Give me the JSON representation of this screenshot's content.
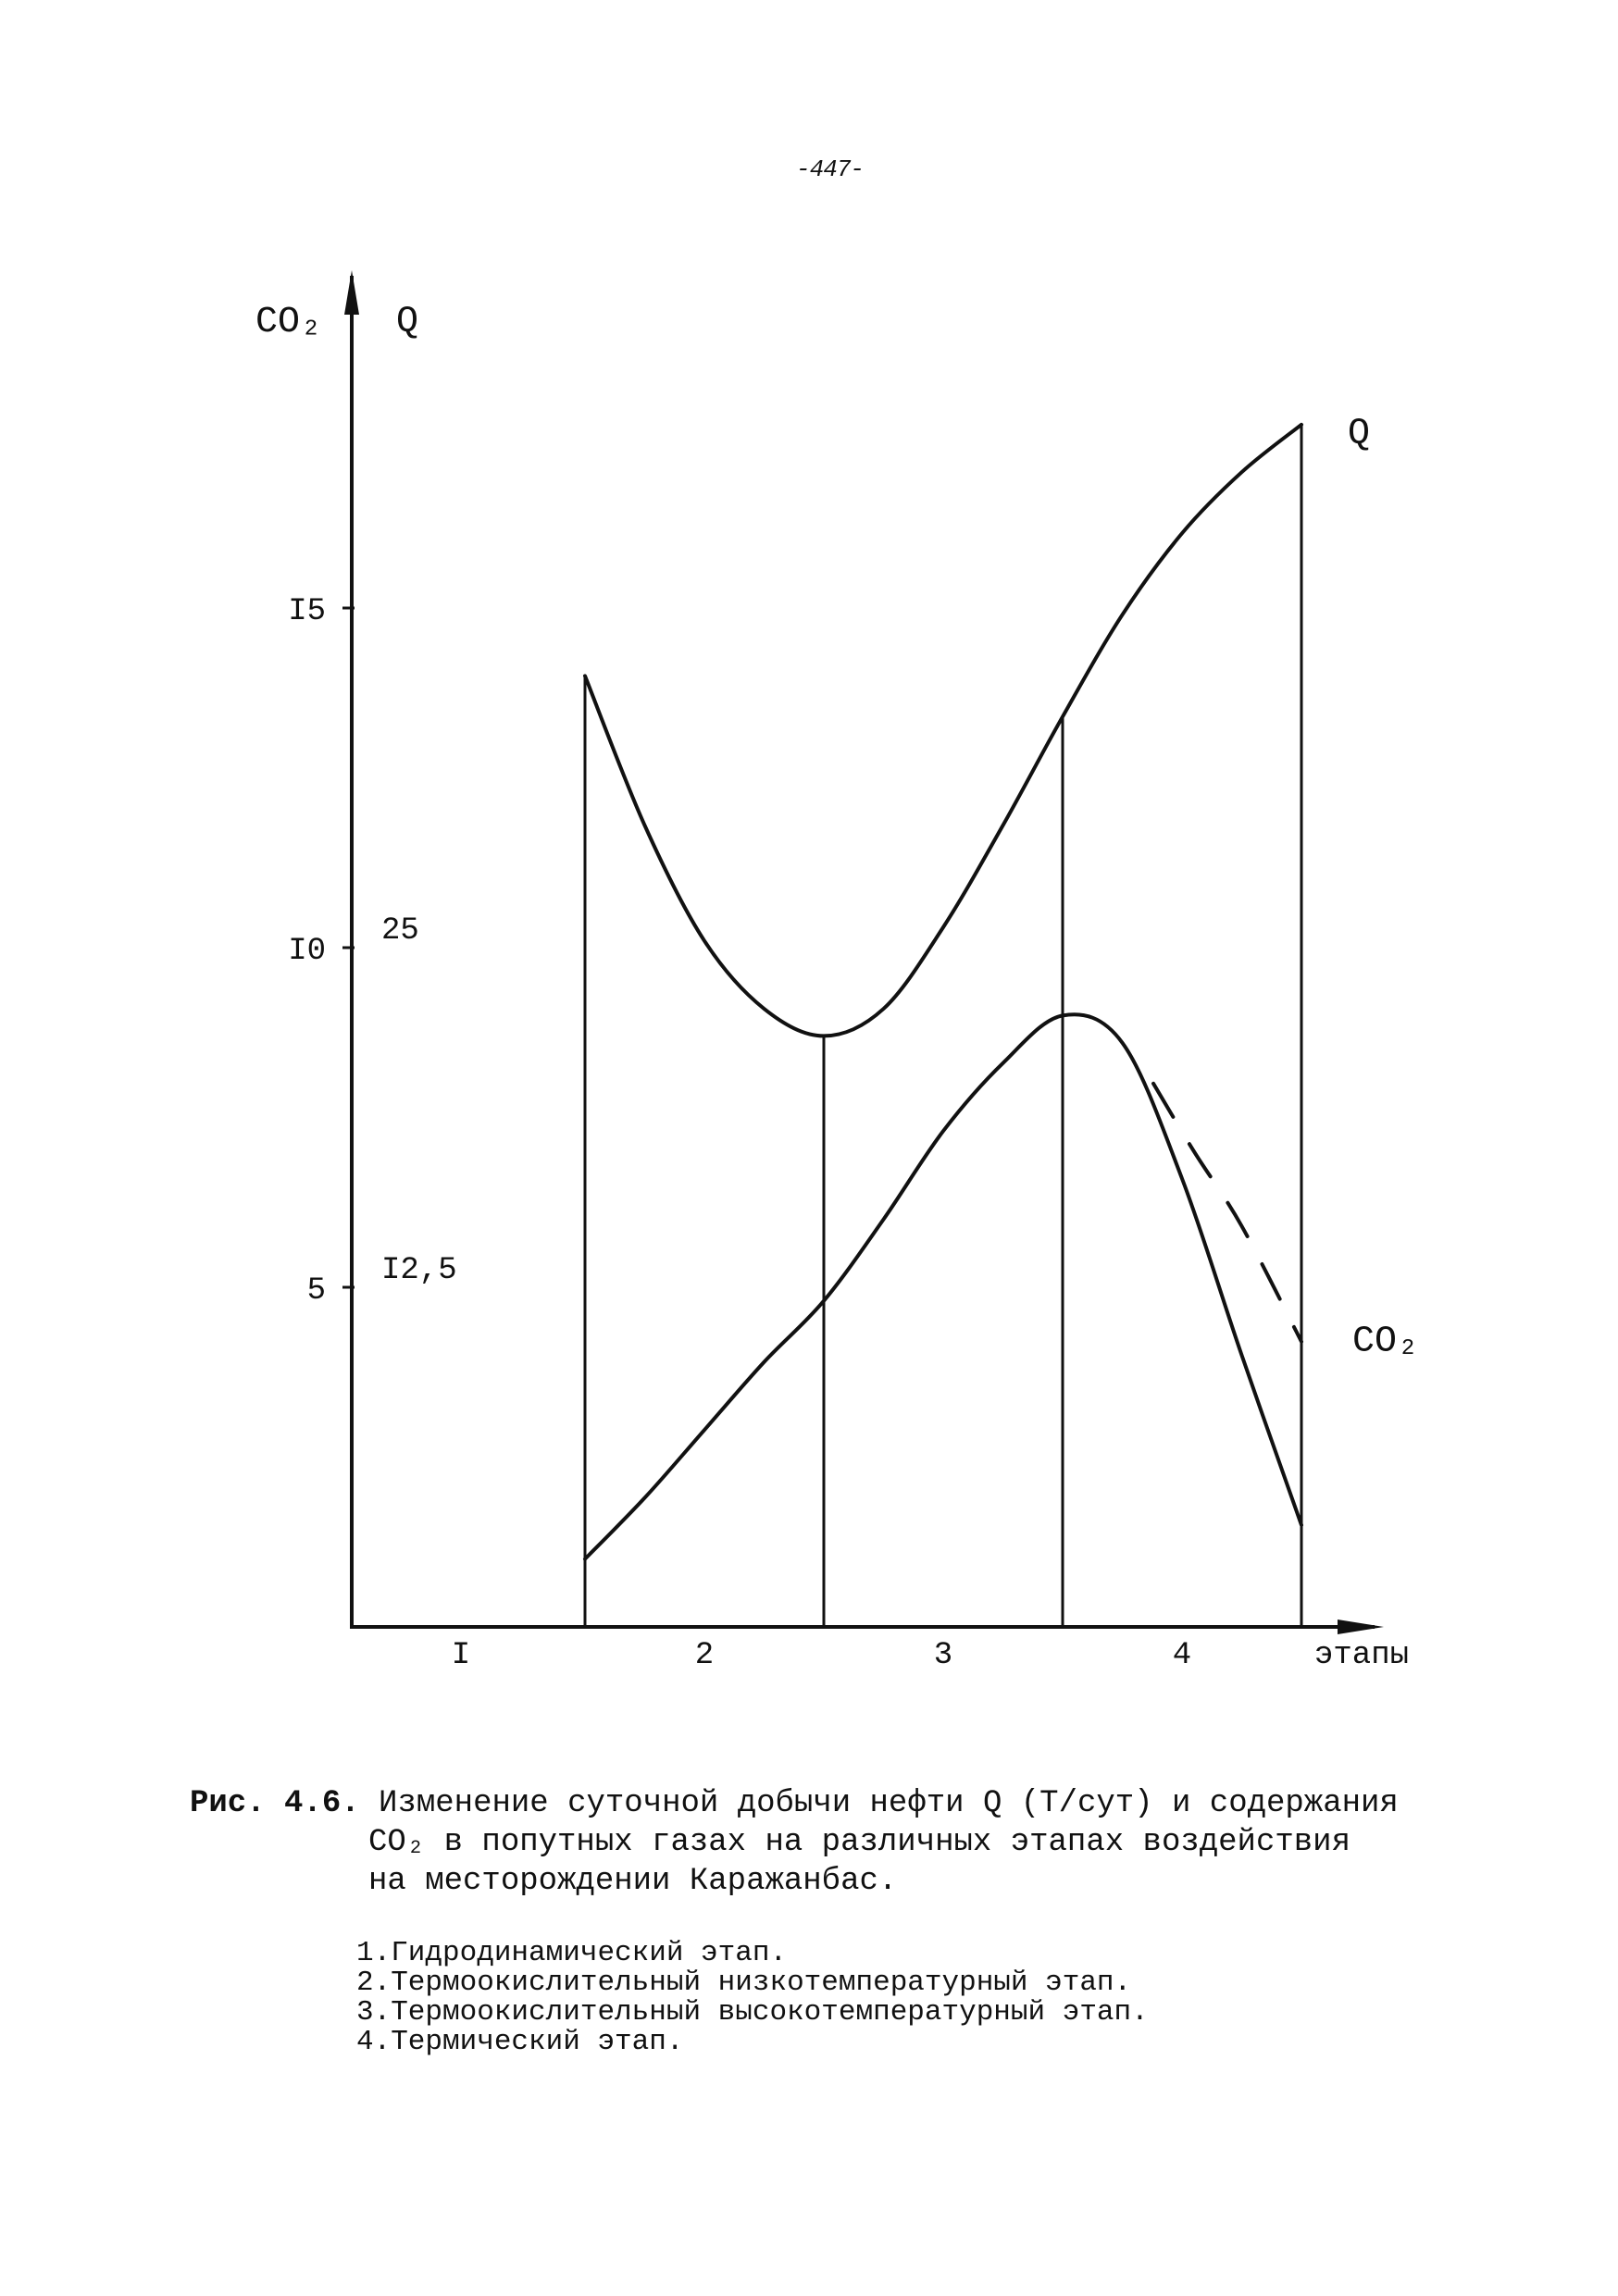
{
  "page_number": "-447-",
  "caption": {
    "figure_label": "Рис. 4.6.",
    "line1": "Изменение суточной добычи нефти Q (Т/сут) и содержания",
    "line2": "CO₂ в попутных газах на различных этапах воздействия",
    "line3": "на месторождении Каражанбас."
  },
  "stages_list": [
    "1.Гидродинамический этап.",
    "2.Термоокислительный низкотемпературный этап.",
    "3.Термоокислительный высокотемпературный этап.",
    "4.Термический этап."
  ],
  "chart_data": {
    "type": "line",
    "title": "",
    "xlabel": "этапы",
    "ylabel_left": "CO₂",
    "ylabel_right": "Q",
    "x_categories": [
      "I",
      "2",
      "3",
      "4"
    ],
    "co2_ticks": [
      "I5",
      "I0",
      "5"
    ],
    "q_ticks": [
      "25",
      "I2,5"
    ],
    "ylim_co2": [
      0,
      22
    ],
    "stage_boundaries": [
      1,
      2,
      3,
      4
    ],
    "series": [
      {
        "name": "Q",
        "color": "#111111",
        "dashed": false,
        "x": [
          1.0,
          1.25,
          1.5,
          1.75,
          2.0,
          2.25,
          2.5,
          2.75,
          3.0,
          3.25,
          3.5,
          3.75,
          4.0
        ],
        "y": [
          14.0,
          11.8,
          10.1,
          9.1,
          8.7,
          9.1,
          10.3,
          11.8,
          13.4,
          14.9,
          16.1,
          17.0,
          17.7
        ]
      },
      {
        "name": "CO₂",
        "color": "#111111",
        "dashed": false,
        "x": [
          1.0,
          1.25,
          1.5,
          1.75,
          2.0,
          2.25,
          2.5,
          2.75,
          3.0,
          3.25,
          3.5,
          3.75,
          4.0
        ],
        "y": [
          1.0,
          1.9,
          2.9,
          3.9,
          4.8,
          6.0,
          7.3,
          8.3,
          9.0,
          8.6,
          6.6,
          4.0,
          1.5
        ]
      },
      {
        "name": "CO₂ (штрих)",
        "color": "#111111",
        "dashed": true,
        "x": [
          3.38,
          3.55,
          3.75,
          4.0
        ],
        "y": [
          8.0,
          7.0,
          5.9,
          4.2
        ]
      }
    ],
    "end_labels": [
      "Q",
      "CO₂"
    ]
  }
}
